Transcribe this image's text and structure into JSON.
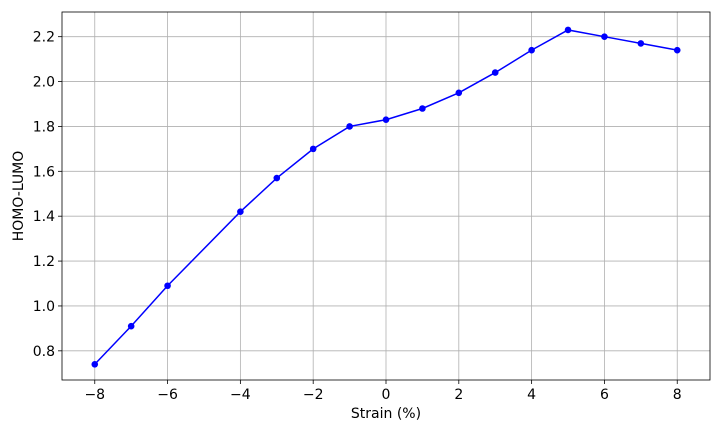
{
  "chart_data": {
    "type": "line",
    "title": "",
    "xlabel": "Strain (%)",
    "ylabel": "HOMO-LUMO",
    "xlim": [
      -8.9,
      8.9
    ],
    "ylim": [
      0.67,
      2.31
    ],
    "xticks": [
      -8,
      -6,
      -4,
      -2,
      0,
      2,
      4,
      6,
      8
    ],
    "xtick_labels": [
      "−8",
      "−6",
      "−4",
      "−2",
      "0",
      "2",
      "4",
      "6",
      "8"
    ],
    "yticks": [
      0.8,
      1.0,
      1.2,
      1.4,
      1.6,
      1.8,
      2.0,
      2.2
    ],
    "ytick_labels": [
      "0.8",
      "1.0",
      "1.2",
      "1.4",
      "1.6",
      "1.8",
      "2.0",
      "2.2"
    ],
    "grid": true,
    "series": [
      {
        "color": "#0000ff",
        "marker": "circle",
        "x": [
          -8,
          -7,
          -6,
          -4,
          -3,
          -2,
          -1,
          0,
          1,
          2,
          3,
          4,
          5,
          6,
          7,
          8
        ],
        "y": [
          0.74,
          0.91,
          1.09,
          1.42,
          1.57,
          1.7,
          1.8,
          1.83,
          1.88,
          1.95,
          2.04,
          2.14,
          2.23,
          2.2,
          2.17,
          2.14
        ]
      }
    ]
  }
}
